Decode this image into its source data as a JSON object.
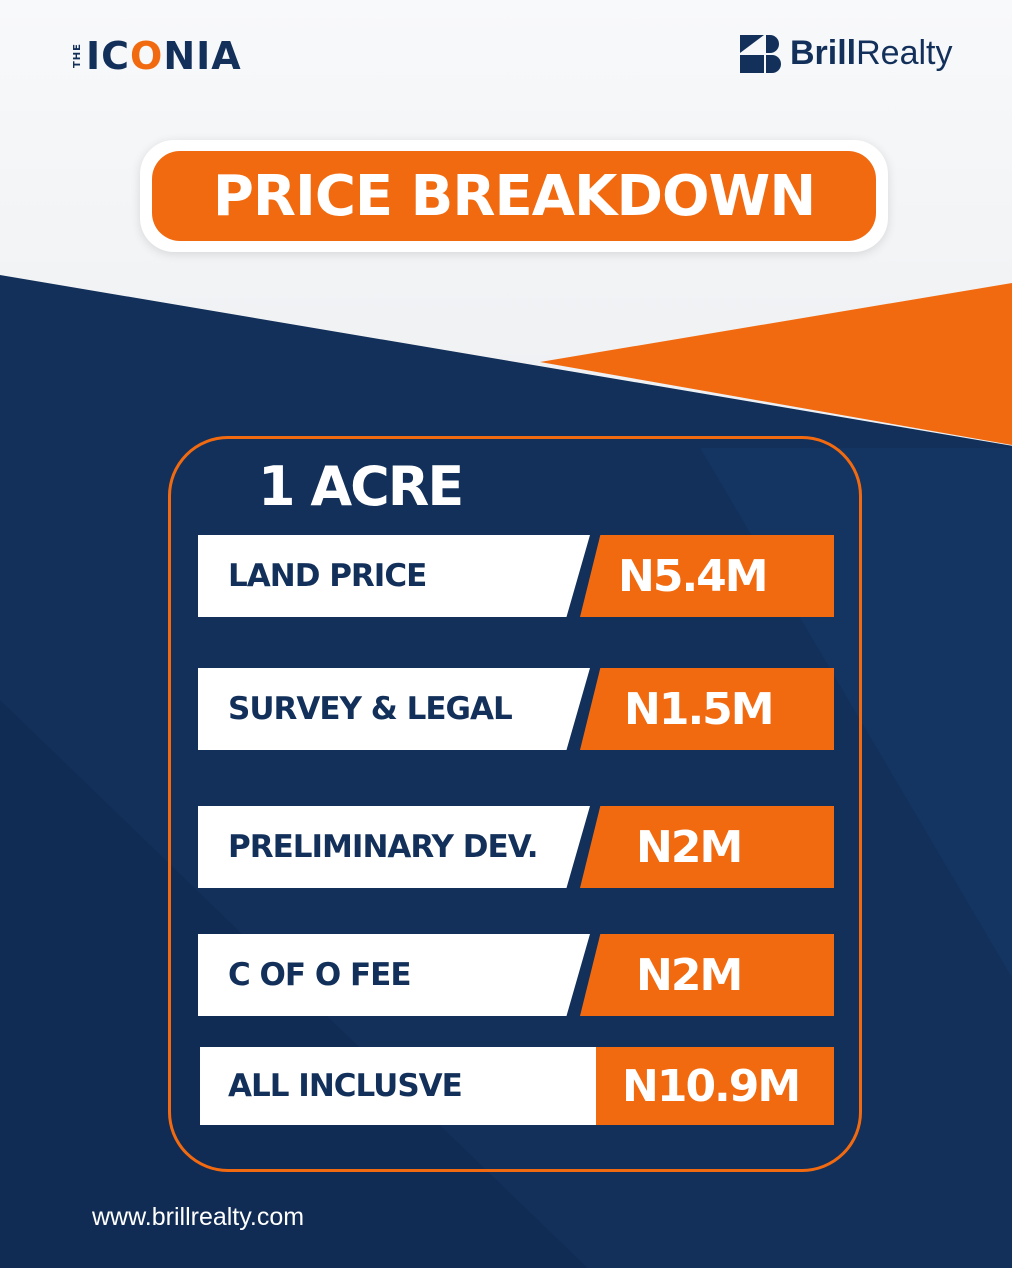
{
  "brand_left": {
    "prefix": "THE",
    "name_pre": "IC",
    "name_o": "O",
    "name_post": "NIA"
  },
  "brand_right": {
    "bold": "Brill",
    "regular": "Realty"
  },
  "title": "PRICE BREAKDOWN",
  "plot_size": "1 ACRE",
  "rows": [
    {
      "label": "LAND PRICE",
      "value": "N5.4M"
    },
    {
      "label": "SURVEY & LEGAL",
      "value": "N1.5M"
    },
    {
      "label": "PRELIMINARY DEV.",
      "value": "N2M"
    },
    {
      "label": "C OF O FEE",
      "value": "N2M"
    },
    {
      "label": "ALL INCLUSVE",
      "value": "N10.9M"
    }
  ],
  "website": "www.brillrealty.com",
  "colors": {
    "navy": "#12305a",
    "orange": "#f26a10",
    "white": "#ffffff"
  }
}
